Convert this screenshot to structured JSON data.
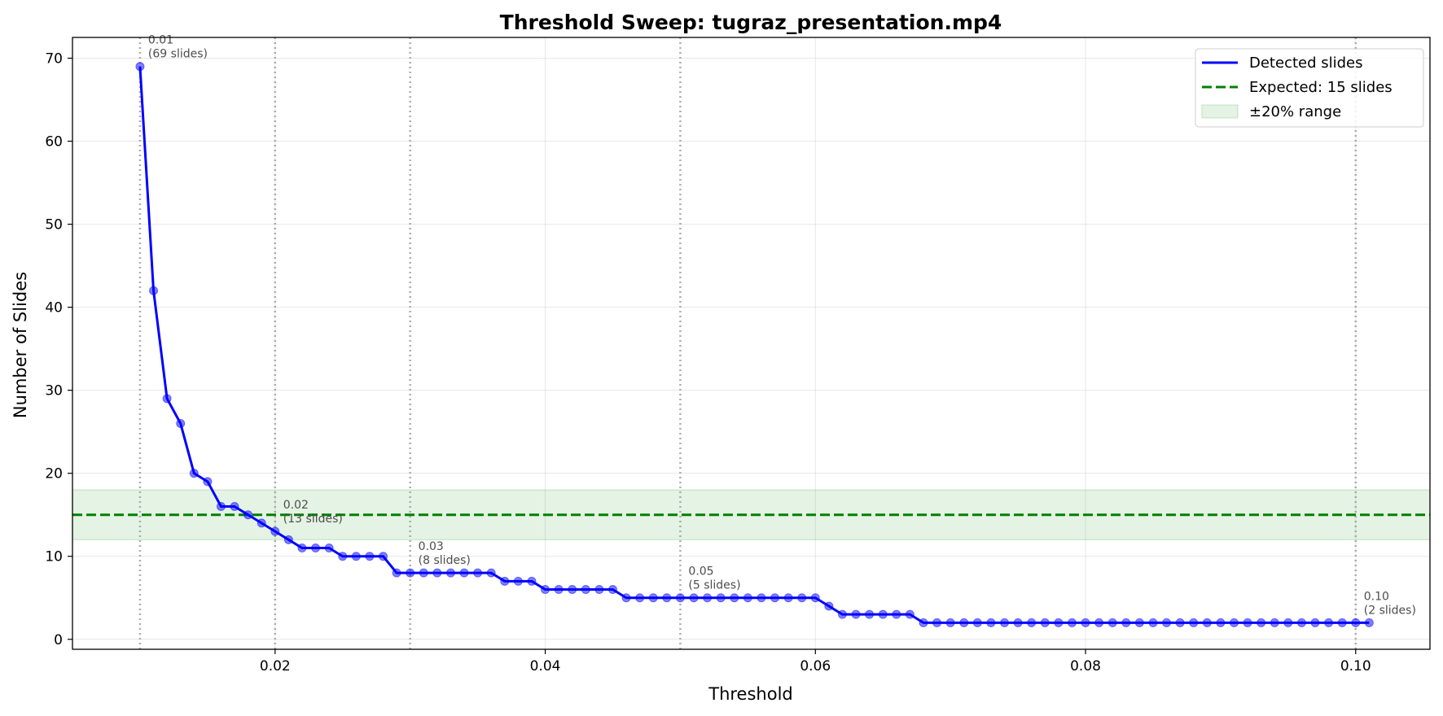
{
  "chart_data": {
    "type": "line",
    "title": "Threshold Sweep: tugraz_presentation.mp4",
    "xlabel": "Threshold",
    "ylabel": "Number of Slides",
    "xlim": [
      0.005,
      0.1055
    ],
    "ylim": [
      -1.2,
      72.5
    ],
    "xticks": [
      0.02,
      0.04,
      0.06,
      0.08,
      0.1
    ],
    "xtick_labels": [
      "0.02",
      "0.04",
      "0.06",
      "0.08",
      "0.10"
    ],
    "yticks": [
      0,
      10,
      20,
      30,
      40,
      50,
      60,
      70
    ],
    "ytick_labels": [
      "0",
      "10",
      "20",
      "30",
      "40",
      "50",
      "60",
      "70"
    ],
    "grid": true,
    "legend_position": "top-right",
    "series": [
      {
        "name": "Detected slides",
        "color": "#0000ff",
        "x": [
          0.01,
          0.011,
          0.012,
          0.013,
          0.014,
          0.015,
          0.016,
          0.017,
          0.018,
          0.019,
          0.02,
          0.021,
          0.022,
          0.023,
          0.024,
          0.025,
          0.026,
          0.027,
          0.028,
          0.029,
          0.03,
          0.031,
          0.032,
          0.033,
          0.034,
          0.035,
          0.036,
          0.037,
          0.038,
          0.039,
          0.04,
          0.041,
          0.042,
          0.043,
          0.044,
          0.045,
          0.046,
          0.047,
          0.048,
          0.049,
          0.05,
          0.051,
          0.052,
          0.053,
          0.054,
          0.055,
          0.056,
          0.057,
          0.058,
          0.059,
          0.06,
          0.061,
          0.062,
          0.063,
          0.064,
          0.065,
          0.066,
          0.067,
          0.068,
          0.069,
          0.07,
          0.071,
          0.072,
          0.073,
          0.074,
          0.075,
          0.076,
          0.077,
          0.078,
          0.079,
          0.08,
          0.081,
          0.082,
          0.083,
          0.084,
          0.085,
          0.086,
          0.087,
          0.088,
          0.089,
          0.09,
          0.091,
          0.092,
          0.093,
          0.094,
          0.095,
          0.096,
          0.097,
          0.098,
          0.099,
          0.1,
          0.101
        ],
        "y": [
          69,
          42,
          29,
          26,
          20,
          19,
          16,
          16,
          15,
          14,
          13,
          12,
          11,
          11,
          11,
          10,
          10,
          10,
          10,
          8,
          8,
          8,
          8,
          8,
          8,
          8,
          8,
          7,
          7,
          7,
          6,
          6,
          6,
          6,
          6,
          6,
          5,
          5,
          5,
          5,
          5,
          5,
          5,
          5,
          5,
          5,
          5,
          5,
          5,
          5,
          5,
          4,
          3,
          3,
          3,
          3,
          3,
          3,
          2,
          2,
          2,
          2,
          2,
          2,
          2,
          2,
          2,
          2,
          2,
          2,
          2,
          2,
          2,
          2,
          2,
          2,
          2,
          2,
          2,
          2,
          2,
          2,
          2,
          2,
          2,
          2,
          2,
          2,
          2,
          2,
          2,
          2
        ]
      },
      {
        "name": "Expected: 15 slides",
        "color": "#008000",
        "value": 15
      },
      {
        "name": "±20% range",
        "color": "#2ca02c",
        "range": [
          12,
          18
        ]
      }
    ],
    "vlines": [
      0.01,
      0.02,
      0.03,
      0.05,
      0.1
    ],
    "annotations": [
      {
        "x": 0.01,
        "y": 69,
        "line1": "0.01",
        "line2": "(69 slides)"
      },
      {
        "x": 0.02,
        "y": 13,
        "line1": "0.02",
        "line2": "(13 slides)"
      },
      {
        "x": 0.03,
        "y": 8,
        "line1": "0.03",
        "line2": "(8 slides)"
      },
      {
        "x": 0.05,
        "y": 5,
        "line1": "0.05",
        "line2": "(5 slides)"
      },
      {
        "x": 0.1,
        "y": 2,
        "line1": "0.10",
        "line2": "(2 slides)"
      }
    ]
  }
}
